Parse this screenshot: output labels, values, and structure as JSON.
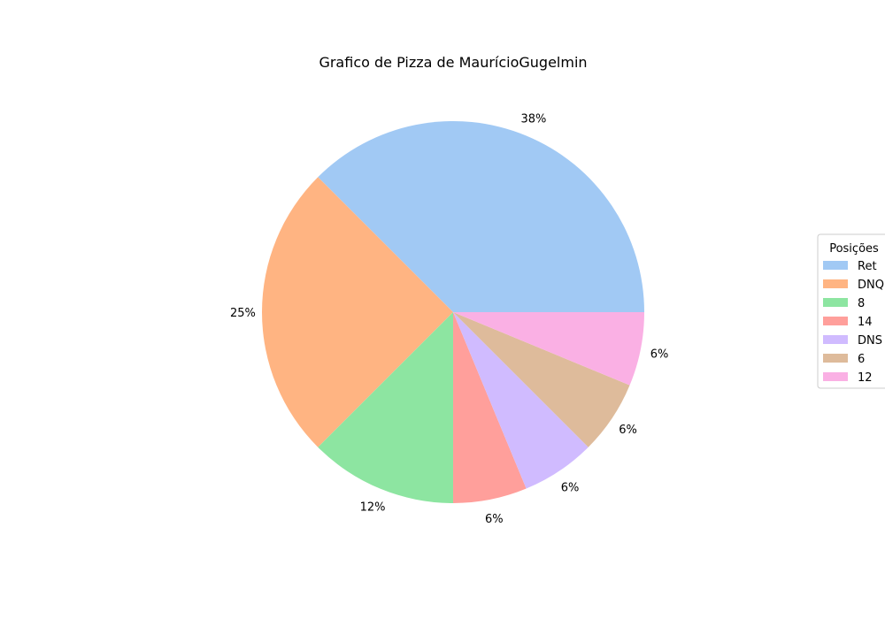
{
  "chart_data": {
    "type": "pie",
    "title": "Grafico de Pizza de MaurícioGugelmin",
    "legend_title": "Posições",
    "legend_position": "right",
    "slices": [
      {
        "label": "Ret",
        "value": 37.5,
        "pct_label": "38%",
        "color": "#a1c9f4"
      },
      {
        "label": "DNQ",
        "value": 25.0,
        "pct_label": "25%",
        "color": "#ffb482"
      },
      {
        "label": "8",
        "value": 12.5,
        "pct_label": "12%",
        "color": "#8de5a1"
      },
      {
        "label": "14",
        "value": 6.25,
        "pct_label": "6%",
        "color": "#ff9f9b"
      },
      {
        "label": "DNS",
        "value": 6.25,
        "pct_label": "6%",
        "color": "#d0bbff"
      },
      {
        "label": "6",
        "value": 6.25,
        "pct_label": "6%",
        "color": "#debb9b"
      },
      {
        "label": "12",
        "value": 6.25,
        "pct_label": "6%",
        "color": "#fab0e4"
      }
    ]
  }
}
